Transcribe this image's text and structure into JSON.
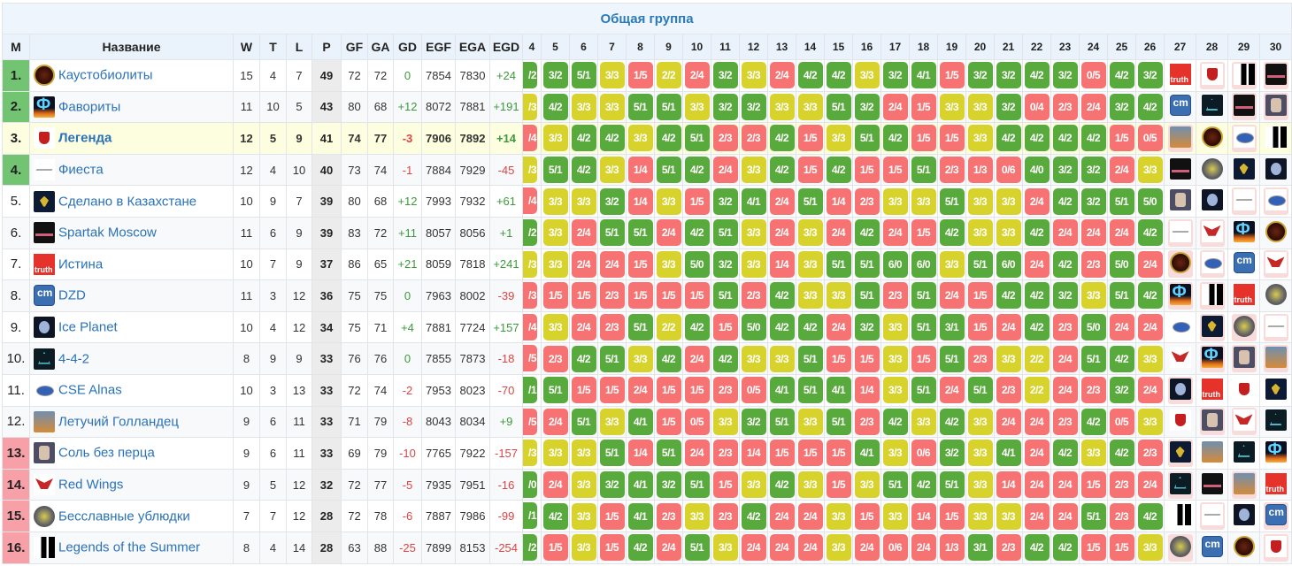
{
  "title": "Общая группа",
  "headers": {
    "pos": "M",
    "name": "Название",
    "w": "W",
    "t": "T",
    "l": "L",
    "p": "P",
    "gf": "GF",
    "ga": "GA",
    "gd": "GD",
    "egf": "EGF",
    "ega": "EGA",
    "egd": "EGD"
  },
  "round_columns": [
    "4",
    "5",
    "6",
    "7",
    "8",
    "9",
    "10",
    "11",
    "12",
    "13",
    "14",
    "15",
    "16",
    "17",
    "18",
    "19",
    "20",
    "21",
    "22",
    "23",
    "24",
    "25",
    "26",
    "27",
    "28",
    "29",
    "30"
  ],
  "colors": {
    "win": "#58aa3c",
    "draw": "#d8d22c",
    "loss": "#f77373",
    "top_zone": "#72c472",
    "bottom_zone": "#f7a0a8",
    "highlight": "#fdfde0",
    "link": "#2a72b8"
  },
  "teams": [
    {
      "pos": "1.",
      "name": "Каустобиолиты",
      "logo": "kaus",
      "w": "15",
      "t": "4",
      "l": "7",
      "p": "49",
      "gf": "72",
      "ga": "72",
      "gd": "0",
      "egf": "7854",
      "ega": "7830",
      "egd": "+24",
      "zone": "top",
      "results": [
        "/2",
        "3/2",
        "5/1",
        "3/3",
        "1/5",
        "2/2",
        "2/4",
        "3/2",
        "3/3",
        "2/4",
        "4/2",
        "4/2",
        "3/3",
        "3/2",
        "4/1",
        "1/5",
        "3/2",
        "3/2",
        "4/2",
        "3/2",
        "0/5",
        "4/2",
        "3/2"
      ],
      "upcoming": [
        {
          "logo": "truth",
          "away": false
        },
        {
          "logo": "leg",
          "away": true
        },
        {
          "logo": "summer",
          "away": true
        },
        {
          "logo": "spartak",
          "away": true
        }
      ]
    },
    {
      "pos": "2.",
      "name": "Фавориты",
      "logo": "fav",
      "w": "11",
      "t": "10",
      "l": "5",
      "p": "43",
      "gf": "80",
      "ga": "68",
      "gd": "+12",
      "egf": "8072",
      "ega": "7881",
      "egd": "+191",
      "zone": "top",
      "results": [
        "/3",
        "4/2",
        "3/3",
        "3/3",
        "5/1",
        "5/1",
        "3/3",
        "3/2",
        "3/2",
        "3/3",
        "3/3",
        "5/1",
        "3/2",
        "2/4",
        "1/5",
        "3/3",
        "3/3",
        "3/2",
        "0/4",
        "2/3",
        "2/4",
        "3/2",
        "4/2"
      ],
      "upcoming": [
        {
          "logo": "dzd",
          "away": false
        },
        {
          "logo": "442",
          "away": false
        },
        {
          "logo": "spartak",
          "away": true
        },
        {
          "logo": "salt",
          "away": true
        }
      ]
    },
    {
      "pos": "3.",
      "name": "Легенда",
      "logo": "leg",
      "w": "12",
      "t": "5",
      "l": "9",
      "p": "41",
      "gf": "74",
      "ga": "77",
      "gd": "-3",
      "egf": "7906",
      "ega": "7892",
      "egd": "+14",
      "zone": "top",
      "highlight": true,
      "results": [
        "/4",
        "3/3",
        "4/2",
        "4/2",
        "3/3",
        "4/2",
        "5/1",
        "2/3",
        "2/3",
        "4/2",
        "1/5",
        "3/3",
        "5/1",
        "4/2",
        "1/5",
        "1/5",
        "3/3",
        "4/2",
        "4/2",
        "4/2",
        "4/2",
        "1/5",
        "0/5"
      ],
      "upcoming": [
        {
          "logo": "dutch",
          "away": true
        },
        {
          "logo": "kaus",
          "away": false
        },
        {
          "logo": "cse",
          "away": true
        },
        {
          "logo": "summer",
          "away": false
        }
      ]
    },
    {
      "pos": "4.",
      "name": "Фиеста",
      "logo": "fiesta",
      "w": "12",
      "t": "4",
      "l": "10",
      "p": "40",
      "gf": "73",
      "ga": "74",
      "gd": "-1",
      "egf": "7884",
      "ega": "7929",
      "egd": "-45",
      "zone": "top",
      "results": [
        "/3",
        "5/1",
        "4/2",
        "3/3",
        "1/4",
        "5/1",
        "4/2",
        "2/4",
        "3/3",
        "4/2",
        "1/5",
        "4/2",
        "1/5",
        "1/5",
        "5/1",
        "2/3",
        "1/3",
        "0/6",
        "4/0",
        "3/2",
        "3/2",
        "2/4",
        "3/3"
      ],
      "upcoming": [
        {
          "logo": "spartak",
          "away": false
        },
        {
          "logo": "bastards",
          "away": false
        },
        {
          "logo": "kz",
          "away": false
        },
        {
          "logo": "ice",
          "away": false
        }
      ]
    },
    {
      "pos": "5.",
      "name": "Сделано в Казахстане",
      "logo": "kz",
      "w": "10",
      "t": "9",
      "l": "7",
      "p": "39",
      "gf": "80",
      "ga": "68",
      "gd": "+12",
      "egf": "7993",
      "ega": "7932",
      "egd": "+61",
      "zone": "mid",
      "results": [
        "/4",
        "3/3",
        "3/3",
        "3/2",
        "1/4",
        "3/3",
        "1/5",
        "3/2",
        "4/1",
        "2/4",
        "5/1",
        "1/4",
        "2/3",
        "3/3",
        "3/3",
        "5/1",
        "3/3",
        "3/3",
        "2/4",
        "4/2",
        "3/2",
        "5/1",
        "5/0"
      ],
      "upcoming": [
        {
          "logo": "salt",
          "away": false
        },
        {
          "logo": "ice",
          "away": false
        },
        {
          "logo": "fiesta",
          "away": true
        },
        {
          "logo": "cse",
          "away": true
        }
      ]
    },
    {
      "pos": "6.",
      "name": "Spartak Moscow",
      "logo": "spartak",
      "w": "11",
      "t": "6",
      "l": "9",
      "p": "39",
      "gf": "83",
      "ga": "72",
      "gd": "+11",
      "egf": "8057",
      "ega": "8056",
      "egd": "+1",
      "zone": "mid",
      "results": [
        "/2",
        "3/3",
        "2/4",
        "5/1",
        "5/1",
        "2/4",
        "4/2",
        "5/1",
        "3/3",
        "2/4",
        "3/3",
        "2/4",
        "4/2",
        "2/4",
        "1/5",
        "4/2",
        "3/3",
        "3/3",
        "4/2",
        "2/4",
        "2/4",
        "2/4",
        "4/2"
      ],
      "upcoming": [
        {
          "logo": "fiesta",
          "away": true
        },
        {
          "logo": "redwings",
          "away": true
        },
        {
          "logo": "fav",
          "away": false
        },
        {
          "logo": "kaus",
          "away": false
        }
      ]
    },
    {
      "pos": "7.",
      "name": "Истина",
      "logo": "truth",
      "w": "10",
      "t": "7",
      "l": "9",
      "p": "37",
      "gf": "86",
      "ga": "65",
      "gd": "+21",
      "egf": "8059",
      "ega": "7818",
      "egd": "+241",
      "zone": "mid",
      "results": [
        "/3",
        "3/3",
        "2/4",
        "2/4",
        "1/5",
        "3/3",
        "5/0",
        "3/2",
        "3/3",
        "1/4",
        "3/3",
        "5/1",
        "5/1",
        "6/0",
        "6/0",
        "3/3",
        "5/1",
        "6/0",
        "2/4",
        "4/2",
        "2/3",
        "5/0",
        "2/4"
      ],
      "upcoming": [
        {
          "logo": "kaus",
          "away": true
        },
        {
          "logo": "cse",
          "away": true
        },
        {
          "logo": "dzd",
          "away": false
        },
        {
          "logo": "redwings",
          "away": true
        }
      ]
    },
    {
      "pos": "8.",
      "name": "DZD",
      "logo": "dzd",
      "w": "11",
      "t": "3",
      "l": "12",
      "p": "36",
      "gf": "75",
      "ga": "75",
      "gd": "0",
      "egf": "7963",
      "ega": "8002",
      "egd": "-39",
      "zone": "mid",
      "results": [
        "/3",
        "1/5",
        "1/5",
        "2/3",
        "1/5",
        "1/5",
        "1/5",
        "5/1",
        "2/3",
        "4/2",
        "3/3",
        "3/3",
        "5/1",
        "2/3",
        "5/1",
        "2/4",
        "1/5",
        "4/2",
        "4/2",
        "3/2",
        "3/3",
        "5/1",
        "4/2"
      ],
      "upcoming": [
        {
          "logo": "fav",
          "away": true
        },
        {
          "logo": "summer",
          "away": true
        },
        {
          "logo": "truth",
          "away": false
        },
        {
          "logo": "bastards",
          "away": false
        }
      ]
    },
    {
      "pos": "9.",
      "name": "Ice Planet",
      "logo": "ice",
      "w": "10",
      "t": "4",
      "l": "12",
      "p": "34",
      "gf": "75",
      "ga": "71",
      "gd": "+4",
      "egf": "7881",
      "ega": "7724",
      "egd": "+157",
      "zone": "mid",
      "results": [
        "/4",
        "3/3",
        "2/4",
        "2/3",
        "5/1",
        "2/2",
        "4/2",
        "1/5",
        "5/0",
        "4/2",
        "4/2",
        "2/4",
        "3/2",
        "3/3",
        "5/1",
        "3/1",
        "1/5",
        "2/4",
        "4/2",
        "2/3",
        "5/0",
        "2/4",
        "2/4"
      ],
      "upcoming": [
        {
          "logo": "cse",
          "away": false
        },
        {
          "logo": "kz",
          "away": true
        },
        {
          "logo": "bastards",
          "away": true
        },
        {
          "logo": "fiesta",
          "away": true
        }
      ]
    },
    {
      "pos": "10.",
      "name": "4-4-2",
      "logo": "442",
      "w": "8",
      "t": "9",
      "l": "9",
      "p": "33",
      "gf": "76",
      "ga": "76",
      "gd": "0",
      "egf": "7855",
      "ega": "7873",
      "egd": "-18",
      "zone": "mid",
      "results": [
        "/5",
        "2/3",
        "4/2",
        "5/1",
        "3/3",
        "4/2",
        "2/4",
        "4/2",
        "3/3",
        "3/3",
        "5/1",
        "1/5",
        "1/5",
        "3/3",
        "1/5",
        "5/1",
        "2/3",
        "3/3",
        "2/2",
        "2/4",
        "5/1",
        "4/2",
        "3/3"
      ],
      "upcoming": [
        {
          "logo": "redwings",
          "away": false
        },
        {
          "logo": "fav",
          "away": true
        },
        {
          "logo": "salt",
          "away": true
        },
        {
          "logo": "dutch",
          "away": true
        }
      ]
    },
    {
      "pos": "11.",
      "name": "CSE Alnas",
      "logo": "cse",
      "w": "10",
      "t": "3",
      "l": "13",
      "p": "33",
      "gf": "72",
      "ga": "74",
      "gd": "-2",
      "egf": "7953",
      "ega": "8023",
      "egd": "-70",
      "zone": "mid",
      "results": [
        "/1",
        "5/1",
        "1/5",
        "1/5",
        "2/4",
        "1/5",
        "1/5",
        "2/3",
        "0/5",
        "4/1",
        "5/1",
        "4/1",
        "1/4",
        "3/3",
        "5/1",
        "2/4",
        "5/1",
        "2/3",
        "2/2",
        "2/4",
        "2/3",
        "3/2",
        "2/4"
      ],
      "upcoming": [
        {
          "logo": "ice",
          "away": true
        },
        {
          "logo": "truth",
          "away": false
        },
        {
          "logo": "leg",
          "away": false
        },
        {
          "logo": "kz",
          "away": false
        }
      ]
    },
    {
      "pos": "12.",
      "name": "Летучий Голландец",
      "logo": "dutch",
      "w": "9",
      "t": "6",
      "l": "11",
      "p": "33",
      "gf": "71",
      "ga": "79",
      "gd": "-8",
      "egf": "8043",
      "ega": "8034",
      "egd": "+9",
      "zone": "mid",
      "results": [
        "/5",
        "2/4",
        "5/1",
        "3/3",
        "4/1",
        "1/5",
        "0/5",
        "3/3",
        "3/2",
        "5/1",
        "3/3",
        "5/1",
        "2/3",
        "4/2",
        "3/3",
        "4/2",
        "3/3",
        "2/4",
        "2/4",
        "2/3",
        "4/2",
        "0/5",
        "3/3"
      ],
      "upcoming": [
        {
          "logo": "leg",
          "away": false
        },
        {
          "logo": "salt",
          "away": true
        },
        {
          "logo": "redwings",
          "away": true
        },
        {
          "logo": "442",
          "away": false
        }
      ]
    },
    {
      "pos": "13.",
      "name": "Соль без перца",
      "logo": "salt",
      "w": "9",
      "t": "6",
      "l": "11",
      "p": "33",
      "gf": "69",
      "ga": "79",
      "gd": "-10",
      "egf": "7765",
      "ega": "7922",
      "egd": "-157",
      "zone": "bot",
      "results": [
        "/3",
        "3/3",
        "3/3",
        "5/1",
        "1/4",
        "5/1",
        "2/4",
        "2/3",
        "1/4",
        "1/5",
        "1/5",
        "1/5",
        "4/1",
        "3/3",
        "0/6",
        "3/2",
        "3/3",
        "4/1",
        "2/4",
        "4/2",
        "3/3",
        "4/2",
        "2/3"
      ],
      "upcoming": [
        {
          "logo": "kz",
          "away": true
        },
        {
          "logo": "dutch",
          "away": false
        },
        {
          "logo": "442",
          "away": false
        },
        {
          "logo": "fav",
          "away": false
        }
      ]
    },
    {
      "pos": "14.",
      "name": "Red Wings",
      "logo": "redwings",
      "w": "9",
      "t": "5",
      "l": "12",
      "p": "32",
      "gf": "72",
      "ga": "77",
      "gd": "-5",
      "egf": "7935",
      "ega": "7951",
      "egd": "-16",
      "zone": "bot",
      "results": [
        "/0",
        "2/4",
        "3/3",
        "3/2",
        "4/1",
        "3/2",
        "5/1",
        "1/5",
        "3/3",
        "4/2",
        "3/3",
        "1/5",
        "3/3",
        "5/1",
        "4/2",
        "5/1",
        "3/3",
        "1/4",
        "2/4",
        "2/4",
        "1/5",
        "2/3",
        "2/4"
      ],
      "upcoming": [
        {
          "logo": "442",
          "away": true
        },
        {
          "logo": "spartak",
          "away": false
        },
        {
          "logo": "dutch",
          "away": true
        },
        {
          "logo": "truth",
          "away": false
        }
      ]
    },
    {
      "pos": "15.",
      "name": "Бесславные ублюдки",
      "logo": "bastards",
      "w": "7",
      "t": "7",
      "l": "12",
      "p": "28",
      "gf": "72",
      "ga": "78",
      "gd": "-6",
      "egf": "7887",
      "ega": "7986",
      "egd": "-99",
      "zone": "bot",
      "results": [
        "/1",
        "4/2",
        "3/3",
        "1/5",
        "4/1",
        "2/3",
        "3/3",
        "2/3",
        "4/2",
        "2/4",
        "2/4",
        "3/3",
        "1/5",
        "3/3",
        "1/4",
        "1/5",
        "3/3",
        "3/3",
        "2/4",
        "2/4",
        "5/1",
        "2/3",
        "4/2"
      ],
      "upcoming": [
        {
          "logo": "summer",
          "away": false
        },
        {
          "logo": "fiesta",
          "away": true
        },
        {
          "logo": "ice",
          "away": false
        },
        {
          "logo": "dzd",
          "away": true
        }
      ]
    },
    {
      "pos": "16.",
      "name": "Legends of the Summer",
      "logo": "summer",
      "w": "8",
      "t": "4",
      "l": "14",
      "p": "28",
      "gf": "63",
      "ga": "88",
      "gd": "-25",
      "egf": "7899",
      "ega": "8153",
      "egd": "-254",
      "zone": "bot",
      "results": [
        "/2",
        "1/5",
        "3/3",
        "1/5",
        "4/2",
        "2/4",
        "5/1",
        "3/3",
        "2/4",
        "2/4",
        "2/4",
        "3/3",
        "2/4",
        "0/6",
        "2/4",
        "1/3",
        "3/1",
        "2/3",
        "4/2",
        "4/2",
        "1/5",
        "1/5",
        "3/3"
      ],
      "upcoming": [
        {
          "logo": "bastards",
          "away": true
        },
        {
          "logo": "dzd",
          "away": false
        },
        {
          "logo": "kaus",
          "away": false
        },
        {
          "logo": "leg",
          "away": true
        }
      ]
    }
  ]
}
